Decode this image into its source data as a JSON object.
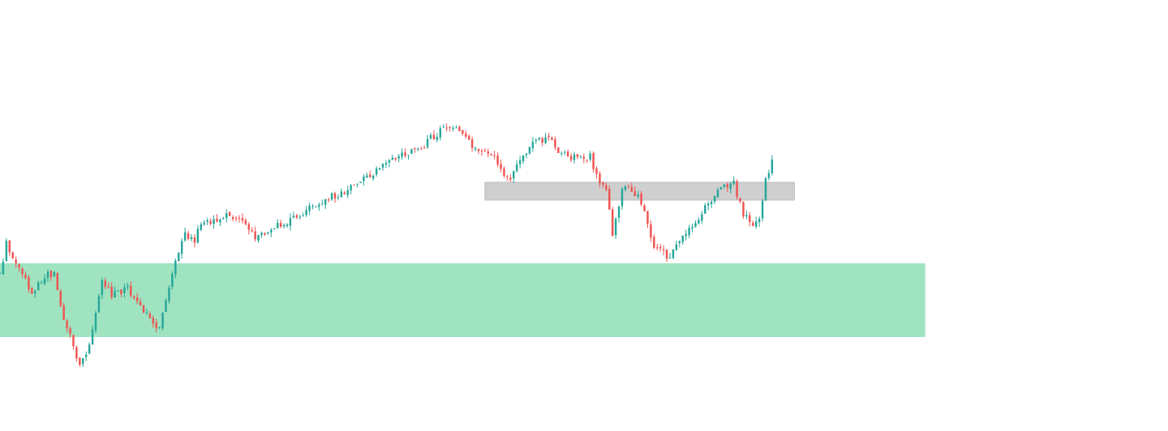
{
  "chart_data": {
    "type": "candlestick",
    "title": "",
    "xlabel": "",
    "ylabel": "",
    "ylim": [
      0,
      532
    ],
    "grid": false,
    "legend": "none",
    "colors": {
      "up": "#26a69a",
      "down": "#ef5350",
      "demand_zone": "#9fe3c0",
      "resistance_zone": "#cfcfcf",
      "background": "#ffffff"
    },
    "zones": [
      {
        "name": "demand-zone",
        "x_start": 0,
        "x_end": 290,
        "y_top": 207,
        "y_bottom": 116
      },
      {
        "name": "resistance-zone",
        "x_start": 152,
        "x_end": 249,
        "y_top": 307,
        "y_bottom": 285
      }
    ],
    "x_range": [
      0,
      360
    ],
    "anchors": [
      [
        0,
        195
      ],
      [
        2,
        232
      ],
      [
        5,
        208
      ],
      [
        10,
        172
      ],
      [
        15,
        196
      ],
      [
        17,
        192
      ],
      [
        20,
        140
      ],
      [
        25,
        80
      ],
      [
        28,
        103
      ],
      [
        32,
        188
      ],
      [
        35,
        168
      ],
      [
        40,
        176
      ],
      [
        44,
        152
      ],
      [
        48,
        132
      ],
      [
        50,
        130
      ],
      [
        55,
        206
      ],
      [
        58,
        244
      ],
      [
        61,
        235
      ],
      [
        62,
        247
      ],
      [
        64,
        259
      ],
      [
        66,
        255
      ],
      [
        70,
        266
      ],
      [
        75,
        262
      ],
      [
        80,
        238
      ],
      [
        85,
        252
      ],
      [
        90,
        257
      ],
      [
        95,
        269
      ],
      [
        100,
        283
      ],
      [
        105,
        291
      ],
      [
        110,
        300
      ],
      [
        115,
        315
      ],
      [
        120,
        326
      ],
      [
        125,
        340
      ],
      [
        128,
        343
      ],
      [
        132,
        346
      ],
      [
        135,
        361
      ],
      [
        140,
        377
      ],
      [
        143,
        371
      ],
      [
        148,
        352
      ],
      [
        152,
        342
      ],
      [
        155,
        337
      ],
      [
        158,
        318
      ],
      [
        160,
        313
      ],
      [
        163,
        331
      ],
      [
        166,
        352
      ],
      [
        170,
        360
      ],
      [
        172,
        362
      ],
      [
        175,
        343
      ],
      [
        180,
        337
      ],
      [
        185,
        338
      ],
      [
        188,
        306
      ],
      [
        190,
        301
      ],
      [
        192,
        240
      ],
      [
        195,
        302
      ],
      [
        200,
        292
      ],
      [
        203,
        255
      ],
      [
        205,
        229
      ],
      [
        208,
        220
      ],
      [
        210,
        213
      ],
      [
        215,
        246
      ],
      [
        219,
        263
      ],
      [
        223,
        286
      ],
      [
        226,
        302
      ],
      [
        230,
        305
      ],
      [
        233,
        267
      ],
      [
        236,
        257
      ],
      [
        238,
        264
      ],
      [
        240,
        312
      ],
      [
        242,
        333
      ]
    ],
    "candle_seed": 20240517,
    "candle_count": 242
  }
}
